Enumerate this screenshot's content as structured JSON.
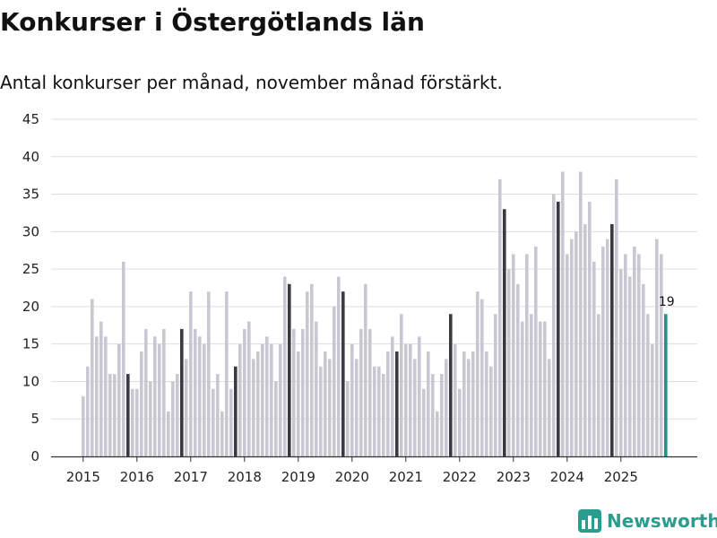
{
  "colors": {
    "normal": "#c8c8d2",
    "november": "#3a3a44",
    "latest": "#16998c",
    "grid": "#dddddd",
    "brand": "#2a9d8f"
  },
  "header": {
    "title": "Konkurser i Östergötlands län",
    "subtitle": "Antal konkurser per månad, november månad förstärkt."
  },
  "brand": {
    "name": "Newsworthy",
    "icon": "newsworthy-logo-icon"
  },
  "chart_data": {
    "type": "bar",
    "title": "Konkurser i Östergötlands län",
    "subtitle": "Antal konkurser per månad, november månad förstärkt.",
    "xlabel": "",
    "ylabel": "",
    "ylim": [
      0,
      45
    ],
    "yticks": [
      0,
      5,
      10,
      15,
      20,
      25,
      30,
      35,
      40,
      45
    ],
    "grid": true,
    "start": {
      "year": 2015,
      "month": 1
    },
    "xtick_labels": [
      "2015",
      "2016",
      "2017",
      "2018",
      "2019",
      "2020",
      "2021",
      "2022",
      "2023",
      "2024",
      "2025"
    ],
    "highlight": "november",
    "last_value_label": "19",
    "values": [
      8,
      12,
      21,
      16,
      18,
      16,
      11,
      11,
      15,
      26,
      11,
      9,
      9,
      14,
      17,
      10,
      16,
      15,
      17,
      6,
      10,
      11,
      17,
      13,
      22,
      17,
      16,
      15,
      22,
      9,
      11,
      6,
      22,
      9,
      12,
      15,
      17,
      18,
      13,
      14,
      15,
      16,
      15,
      10,
      15,
      24,
      23,
      17,
      14,
      17,
      22,
      23,
      18,
      12,
      14,
      13,
      20,
      24,
      22,
      10,
      15,
      13,
      17,
      23,
      17,
      12,
      12,
      11,
      14,
      16,
      14,
      19,
      15,
      15,
      13,
      16,
      9,
      14,
      11,
      6,
      11,
      13,
      19,
      15,
      9,
      14,
      13,
      14,
      22,
      21,
      14,
      12,
      19,
      37,
      33,
      25,
      27,
      23,
      18,
      27,
      19,
      28,
      18,
      18,
      13,
      35,
      34,
      38,
      27,
      29,
      30,
      38,
      31,
      34,
      26,
      19,
      28,
      29,
      31,
      37,
      25,
      27,
      24,
      28,
      27,
      23,
      19,
      15,
      29,
      27,
      19
    ]
  }
}
